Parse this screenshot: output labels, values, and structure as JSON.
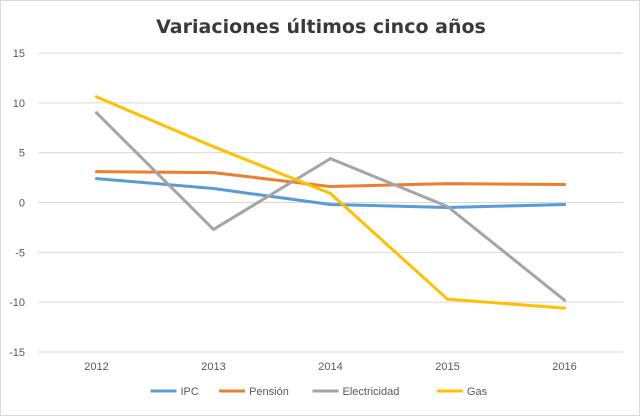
{
  "chart_data": {
    "type": "line",
    "title": "Variaciones últimos cinco años",
    "xlabel": "",
    "ylabel": "",
    "categories": [
      "2012",
      "2013",
      "2014",
      "2015",
      "2016"
    ],
    "ylim": [
      -15,
      15
    ],
    "yticks": [
      -15,
      -10,
      -5,
      0,
      5,
      10,
      15
    ],
    "grid": true,
    "legend_position": "bottom",
    "series": [
      {
        "name": "IPC",
        "color": "#5b9bd5",
        "values": [
          2.4,
          1.4,
          -0.2,
          -0.5,
          -0.2
        ]
      },
      {
        "name": "Pensión",
        "color": "#ed7d31",
        "values": [
          3.1,
          3.0,
          1.6,
          1.9,
          1.8
        ]
      },
      {
        "name": "Electricidad",
        "color": "#a5a5a5",
        "values": [
          9.0,
          -2.7,
          4.4,
          -0.4,
          -9.8
        ]
      },
      {
        "name": "Gas",
        "color": "#ffc000",
        "values": [
          10.6,
          5.6,
          0.9,
          -9.7,
          -10.6
        ]
      }
    ]
  }
}
